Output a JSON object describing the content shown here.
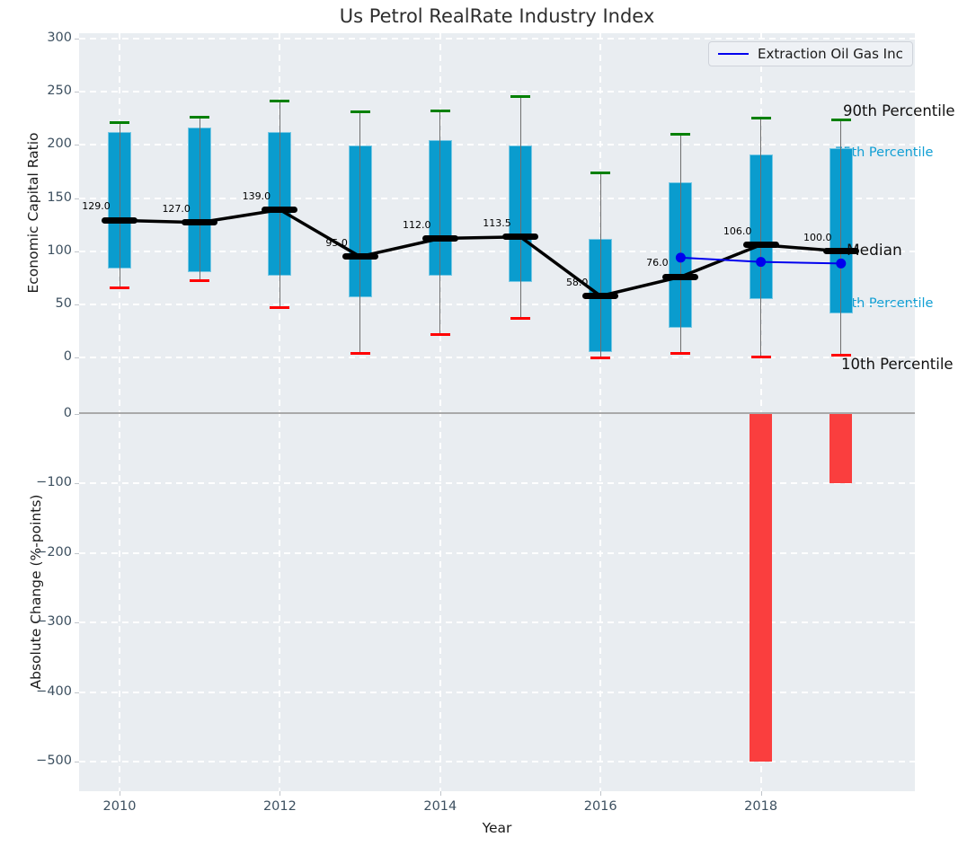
{
  "title": "Us Petrol RealRate Industry Index",
  "legend": {
    "label": "Extraction Oil Gas Inc"
  },
  "colors": {
    "box": "#0a9cce",
    "whisker": "#6e6e6e",
    "cap_top": "#008000",
    "cap_bottom": "#ff0000",
    "median_line": "#000000",
    "company_line": "#0000ee",
    "bar_negative": "#fa3e3e",
    "axes_bg": "#e9edf1",
    "grid": "#ffffff",
    "tick_text": "#3d5060",
    "zero_line": "#a9a9a9",
    "percentile_text": "#119fd4"
  },
  "chart_data": [
    {
      "type": "boxplot",
      "title": "Us Petrol RealRate Industry Index",
      "ylabel": "Economic Capital Ratio",
      "ylim": [
        -33,
        305
      ],
      "yticks": [
        0,
        50,
        100,
        150,
        200,
        250,
        300
      ],
      "grid": true,
      "years": [
        2010,
        2011,
        2012,
        2013,
        2014,
        2015,
        2016,
        2017,
        2018,
        2019
      ],
      "percentiles": {
        "p90": [
          221,
          226,
          241,
          231,
          232,
          245,
          174,
          210,
          225,
          223
        ],
        "p75": [
          212,
          216,
          212,
          199,
          204,
          199,
          112,
          165,
          191,
          197
        ],
        "median": [
          129,
          127,
          139,
          95,
          112,
          113.5,
          58,
          76,
          106,
          100
        ],
        "p25": [
          84,
          80,
          77,
          57,
          77,
          71,
          5,
          28,
          55,
          42
        ],
        "p10": [
          66,
          72,
          47,
          4,
          22,
          37,
          0,
          4,
          0.5,
          2
        ]
      },
      "median_labels": [
        "129.0",
        "127.0",
        "139.0",
        "95.0",
        "112.0",
        "113.5",
        "58.0",
        "76.0",
        "106.0",
        "100.0"
      ],
      "company_line": {
        "name": "Extraction Oil Gas Inc",
        "x": [
          2017,
          2018,
          2019
        ],
        "y": [
          94,
          90,
          88.5
        ]
      },
      "labels": {
        "p90": "90th Percentile",
        "p75": "75th Percentile",
        "median": "Median",
        "p25": "25th Percentile",
        "p10": "10th Percentile"
      },
      "legend_position": "upper right"
    },
    {
      "type": "bar",
      "ylabel": "Absolute Change (%-points)",
      "xlabel": "Year",
      "ylim": [
        -543,
        30
      ],
      "yticks": [
        0,
        -100,
        -200,
        -300,
        -400,
        -500
      ],
      "xticks": [
        2010,
        2012,
        2014,
        2016,
        2018
      ],
      "grid": true,
      "bars": {
        "x": [
          2018,
          2019
        ],
        "values": [
          -500,
          -100
        ]
      }
    }
  ]
}
